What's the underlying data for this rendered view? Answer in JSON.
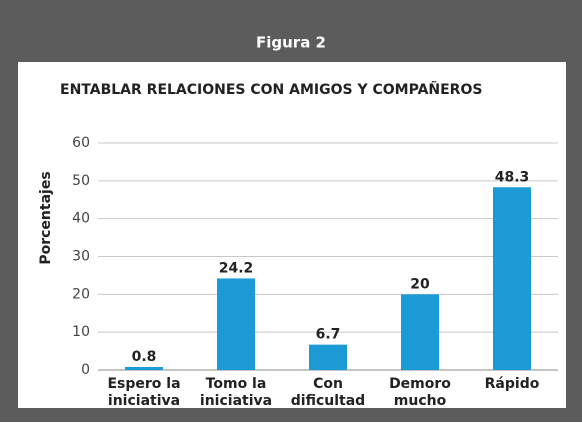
{
  "header": "Figura 2",
  "chart_data": {
    "type": "bar",
    "title": "ENTABLAR RELACIONES CON AMIGOS Y COMPAÑEROS",
    "ylabel": "Porcentajes",
    "categories": [
      [
        "Espero la",
        "iniciativa"
      ],
      [
        "Tomo la",
        "iniciativa"
      ],
      [
        "Con",
        "dificultad"
      ],
      [
        "Demoro",
        "mucho"
      ],
      [
        "Rápido"
      ]
    ],
    "values": [
      0.8,
      24.2,
      6.7,
      20,
      48.3
    ],
    "color": "#1b9ad6",
    "ylim": [
      0,
      60
    ],
    "yticks": [
      0,
      10,
      20,
      30,
      40,
      50,
      60
    ],
    "grid": true
  }
}
